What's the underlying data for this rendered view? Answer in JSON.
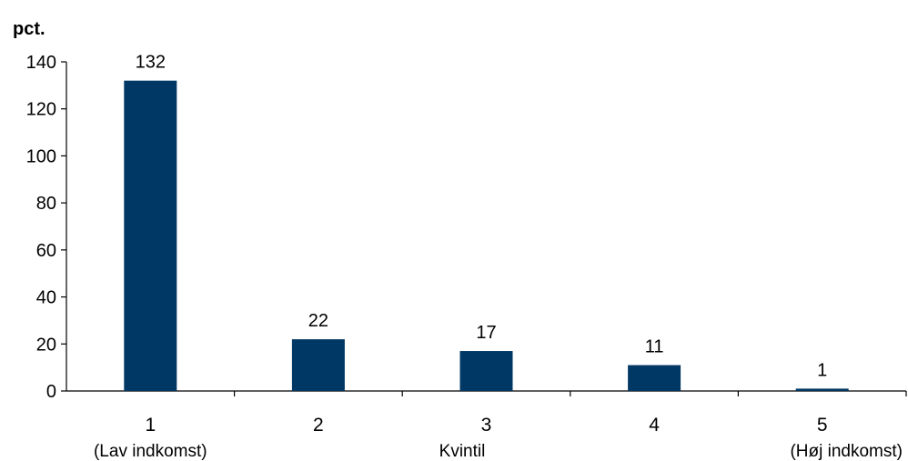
{
  "chart_data": {
    "type": "bar",
    "unit_label": "pct.",
    "xlabel": "Kvintil",
    "ylabel": "",
    "ylim": [
      0,
      140
    ],
    "yticks": [
      0,
      20,
      40,
      60,
      80,
      100,
      120,
      140
    ],
    "categories": [
      "1",
      "2",
      "3",
      "4",
      "5"
    ],
    "sublabels": [
      "(Lav indkomst)",
      "",
      "",
      "",
      "(Høj indkomst)"
    ],
    "values": [
      132,
      22,
      17,
      11,
      1
    ],
    "data_labels": [
      "132",
      "22",
      "17",
      "11",
      "1"
    ],
    "bar_color": "#003865",
    "grid": false,
    "legend": "none"
  }
}
